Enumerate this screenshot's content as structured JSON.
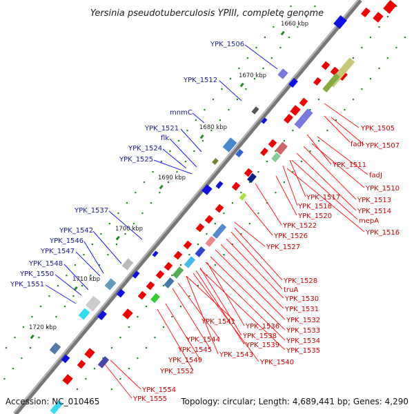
{
  "title": "Yersinia pseudotuberculosis YPIII, complete genome",
  "footer": {
    "accession": "Accession: NC_010465",
    "summary": "Topology: circular; Length: 4,689,441 bp; Genes: 4,290"
  },
  "scale_marks": [
    {
      "label": "1660 kbp"
    },
    {
      "label": "1670 kbp"
    },
    {
      "label": "1680 kbp"
    },
    {
      "label": "1690 kbp"
    },
    {
      "label": "1700 kbp"
    },
    {
      "label": "1710 kbp"
    },
    {
      "label": "1720 kbp"
    }
  ],
  "forward_strand_labels": [
    "YPK_1506",
    "YPK_1512",
    "mnmC",
    "YPK_1521",
    "flk",
    "YPK_1524",
    "YPK_1525",
    "YPK_1537",
    "YPK_1542",
    "YPK_1546",
    "YPK_1547",
    "YPK_1548",
    "YPK_1550",
    "YPK_1551"
  ],
  "reverse_strand_labels": [
    "YPK_1505",
    "fadI",
    "YPK_1507",
    "YPK_1511",
    "fadJ",
    "YPK_1510",
    "YPK_1513",
    "YPK_1514",
    "YPK_1517",
    "YPK_1518",
    "mepA",
    "YPK_1516",
    "YPK_1520",
    "YPK_1522",
    "YPK_1526",
    "YPK_1527",
    "YPK_1528",
    "truA",
    "YPK_1530",
    "YPK_1531",
    "YPK_1532",
    "YPK_1541",
    "YPK_1536",
    "YPK_1533",
    "YPK_1538",
    "YPK_1534",
    "YPK_1544",
    "YPK_1539",
    "YPK_1535",
    "YPK_1545",
    "YPK_1543",
    "YPK_1540",
    "YPK_1549",
    "YPK_1552",
    "YPK_1554",
    "YPK_1555"
  ],
  "colors": {
    "backbone": "#8a8a8a",
    "forward_label": "#1a1a9a",
    "reverse_label": "#cc0000",
    "forward_gene": "#1010e0",
    "reverse_gene": "#ee0000",
    "tick": "#228822"
  }
}
